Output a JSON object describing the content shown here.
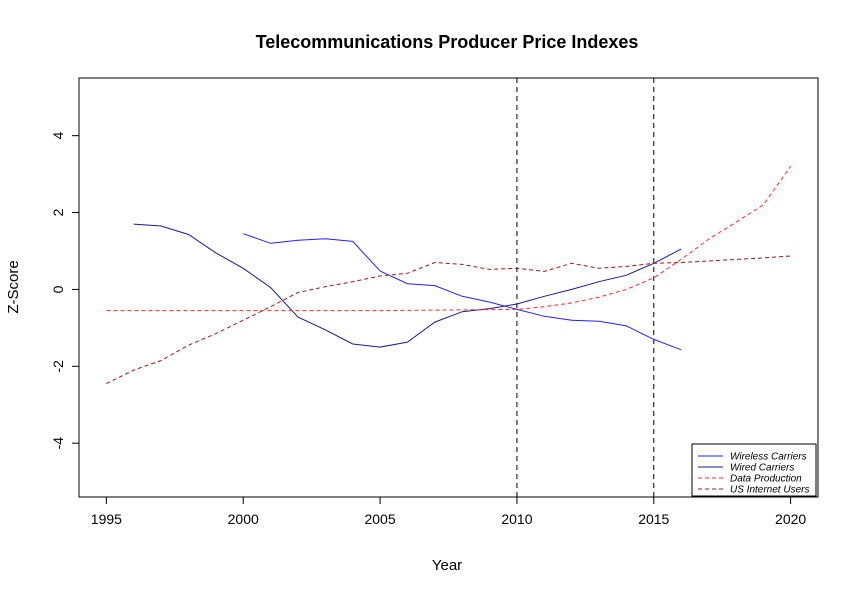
{
  "chart_data": {
    "type": "line",
    "title": "Telecommunications Producer Price Indexes",
    "xlabel": "Year",
    "ylabel": "Z-Score",
    "xlim": [
      1994,
      2021
    ],
    "ylim": [
      -5.4,
      5.5
    ],
    "xticks": [
      1995,
      2000,
      2005,
      2010,
      2015,
      2020
    ],
    "yticks": [
      -4,
      -2,
      0,
      2,
      4
    ],
    "xtick_labels": [
      "1995",
      "2000",
      "2005",
      "2010",
      "2015",
      "2020"
    ],
    "ytick_labels": [
      "-4",
      "-2",
      "0",
      "2",
      "4"
    ],
    "grid": false,
    "legend_position": "bottom-right",
    "vlines": [
      2010,
      2015
    ],
    "series": [
      {
        "name": "Wireless Carriers",
        "color": "#2222ff",
        "style": "solid",
        "x": [
          2000,
          2001,
          2002,
          2003,
          2004,
          2005,
          2006,
          2007,
          2008,
          2009,
          2010,
          2011,
          2012,
          2013,
          2014,
          2015,
          2016
        ],
        "y": [
          1.45,
          1.2,
          1.28,
          1.32,
          1.25,
          0.48,
          0.15,
          0.1,
          -0.18,
          -0.33,
          -0.52,
          -0.7,
          -0.8,
          -0.83,
          -0.95,
          -1.3,
          -1.57
        ]
      },
      {
        "name": "Wired Carriers",
        "color": "#1a1a8c",
        "style": "solid",
        "x": [
          1996,
          1997,
          1998,
          1999,
          2000,
          2001,
          2002,
          2003,
          2004,
          2005,
          2006,
          2007,
          2008,
          2009,
          2010,
          2011,
          2012,
          2013,
          2014,
          2015,
          2016
        ],
        "y": [
          1.7,
          1.65,
          1.43,
          0.95,
          0.55,
          0.05,
          -0.72,
          -1.05,
          -1.42,
          -1.5,
          -1.37,
          -0.85,
          -0.58,
          -0.5,
          -0.38,
          -0.18,
          0.0,
          0.2,
          0.37,
          0.68,
          1.05
        ]
      },
      {
        "name": "Data Production",
        "color": "#ff2a2a",
        "style": "dashed",
        "x": [
          1995,
          2000,
          2005,
          2010,
          2011,
          2012,
          2013,
          2014,
          2015,
          2016,
          2017,
          2018,
          2019,
          2020
        ],
        "y": [
          -0.55,
          -0.55,
          -0.55,
          -0.52,
          -0.45,
          -0.35,
          -0.2,
          0.0,
          0.3,
          0.78,
          1.3,
          1.75,
          2.2,
          3.2
        ]
      },
      {
        "name": "US Internet Users",
        "color": "#a01818",
        "style": "dashed",
        "x": [
          1995,
          1996,
          1997,
          1998,
          1999,
          2000,
          2001,
          2002,
          2003,
          2004,
          2005,
          2006,
          2007,
          2008,
          2009,
          2010,
          2011,
          2012,
          2013,
          2014,
          2015,
          2016,
          2017,
          2018,
          2019,
          2020
        ],
        "y": [
          -2.45,
          -2.1,
          -1.85,
          -1.45,
          -1.15,
          -0.8,
          -0.45,
          -0.08,
          0.07,
          0.2,
          0.35,
          0.42,
          0.7,
          0.65,
          0.52,
          0.55,
          0.47,
          0.68,
          0.55,
          0.6,
          0.68,
          0.7,
          0.74,
          0.78,
          0.82,
          0.87
        ]
      }
    ]
  }
}
